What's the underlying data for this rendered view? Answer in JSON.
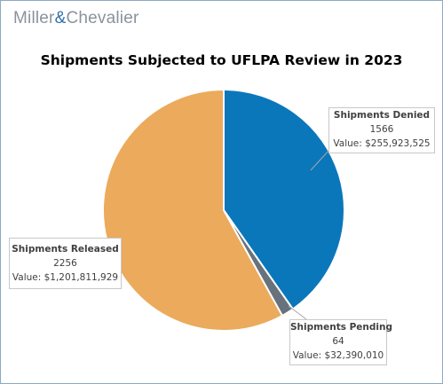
{
  "brand": {
    "logo_left": "Miller",
    "logo_amp": "&",
    "logo_right": "Chevalier"
  },
  "colors": {
    "denied": "#0a77bb",
    "pending": "#68727c",
    "released": "#ebaa5c",
    "border": "#8da9c4"
  },
  "chart_data": {
    "type": "pie",
    "title": "Shipments Subjected to UFLPA Review in 2023",
    "slices": [
      {
        "name": "Shipments Denied",
        "count": "1566",
        "value_text": "Value: $255,923,525",
        "value": 1566,
        "color": "#0a77bb"
      },
      {
        "name": "Shipments Pending",
        "count": "64",
        "value_text": "Value: $32,390,010",
        "value": 64,
        "color": "#68727c"
      },
      {
        "name": "Shipments Released",
        "count": "2256",
        "value_text": "Value: $1,201,811,929",
        "value": 2256,
        "color": "#ebaa5c"
      }
    ],
    "start_angle_deg": 0,
    "direction": "clockwise"
  }
}
